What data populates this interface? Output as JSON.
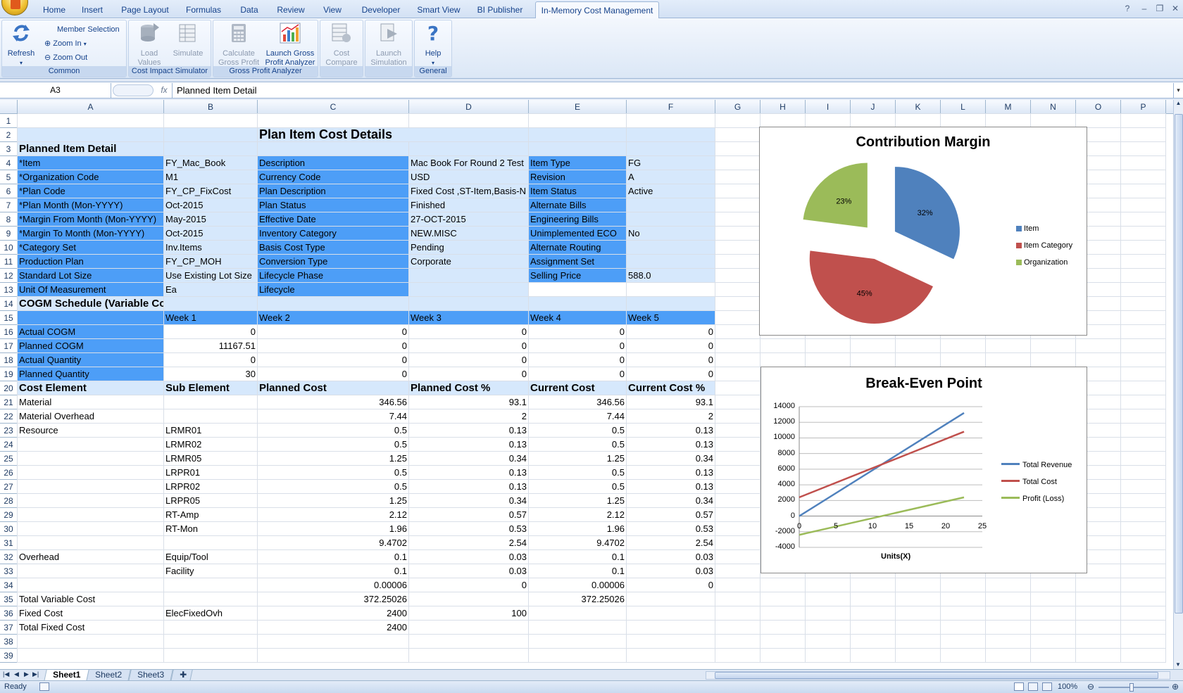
{
  "ribbon": {
    "tabs": [
      "Home",
      "Insert",
      "Page Layout",
      "Formulas",
      "Data",
      "Review",
      "View",
      "Developer",
      "Smart View",
      "BI Publisher",
      "In-Memory Cost Management"
    ],
    "active_tab": "In-Memory Cost Management",
    "groups": {
      "common": {
        "label": "Common",
        "refresh": "Refresh",
        "member_selection": "Member Selection",
        "zoom_in": "Zoom In",
        "zoom_out": "Zoom Out"
      },
      "cost_impact": {
        "label": "Cost Impact Simulator",
        "load_values_1": "Load",
        "load_values_2": "Values",
        "simulate": "Simulate"
      },
      "gross_profit": {
        "label": "Gross Profit Analyzer",
        "calculate_1": "Calculate",
        "calculate_2": "Gross Profit",
        "launch_1": "Launch Gross",
        "launch_2": "Profit Analyzer"
      },
      "cost_compare": {
        "compare_1": "Cost",
        "compare_2": "Compare"
      },
      "simulation": {
        "launch_1": "Launch",
        "launch_2": "Simulation"
      },
      "general": {
        "label": "General",
        "help": "Help"
      }
    }
  },
  "formula_bar": {
    "name_box": "A3",
    "fx": "fx",
    "content": "Planned Item Detail"
  },
  "columns": [
    "A",
    "B",
    "C",
    "D",
    "E",
    "F",
    "G",
    "H",
    "I",
    "J",
    "K",
    "L",
    "M",
    "N",
    "O",
    "P"
  ],
  "rows": [
    "1",
    "2",
    "3",
    "4",
    "5",
    "6",
    "7",
    "8",
    "9",
    "10",
    "11",
    "12",
    "13",
    "14",
    "15",
    "16",
    "17",
    "18",
    "19",
    "20",
    "21",
    "22",
    "23",
    "24",
    "25",
    "26",
    "27",
    "28",
    "29",
    "30",
    "31",
    "32",
    "33",
    "34",
    "35",
    "36",
    "37",
    "38",
    "39"
  ],
  "sheet": {
    "title": "Plan Item Cost Details",
    "section_planned": "Planned Item Detail",
    "details": [
      [
        "*Item",
        "FY_Mac_Book",
        "Description",
        "Mac Book For Round 2 Test",
        "Item Type",
        "FG"
      ],
      [
        "*Organization Code",
        "M1",
        "Currency Code",
        "USD",
        "Revision",
        "A"
      ],
      [
        "*Plan Code",
        "FY_CP_FixCost",
        "Plan Description",
        "Fixed Cost ,ST-Item,Basis-N",
        "Item Status",
        "Active"
      ],
      [
        "*Plan Month (Mon-YYYY)",
        "Oct-2015",
        "Plan Status",
        "Finished",
        "Alternate Bills",
        ""
      ],
      [
        "*Margin From Month (Mon-YYYY)",
        "May-2015",
        "Effective Date",
        "27-OCT-2015",
        "Engineering Bills",
        ""
      ],
      [
        "*Margin To Month (Mon-YYYY)",
        "Oct-2015",
        "Inventory Category",
        "NEW.MISC",
        "Unimplemented ECO",
        "No"
      ],
      [
        "*Category Set",
        "Inv.Items",
        "Basis Cost Type",
        "Pending",
        "Alternate Routing",
        ""
      ],
      [
        "Production Plan",
        "FY_CP_MOH",
        "Conversion Type",
        "Corporate",
        "Assignment Set",
        ""
      ],
      [
        "Standard Lot Size",
        "Use Existing Lot Size",
        "Lifecycle Phase",
        "",
        "Selling Price",
        "588.0"
      ],
      [
        "Unit Of Measurement",
        "Ea",
        "Lifecycle",
        "",
        "",
        ""
      ]
    ],
    "section_cogm": "COGM Schedule (Variable Cost)",
    "weeks": [
      "Week 1",
      "Week 2",
      "Week 3",
      "Week 4",
      "Week 5"
    ],
    "cogm": [
      [
        "Actual COGM",
        "0",
        "0",
        "0",
        "0",
        "0"
      ],
      [
        "Planned COGM",
        "11167.51",
        "0",
        "0",
        "0",
        "0"
      ],
      [
        "Actual Quantity",
        "0",
        "0",
        "0",
        "0",
        "0"
      ],
      [
        "Planned Quantity",
        "30",
        "0",
        "0",
        "0",
        "0"
      ]
    ],
    "cost_headers": [
      "Cost Element",
      "Sub Element",
      "Planned Cost",
      "Planned Cost %",
      "Current Cost",
      "Current Cost %"
    ],
    "costs": [
      [
        "Material",
        "",
        "346.56",
        "93.1",
        "346.56",
        "93.1"
      ],
      [
        "Material Overhead",
        "",
        "7.44",
        "2",
        "7.44",
        "2"
      ],
      [
        "Resource",
        "LRMR01",
        "0.5",
        "0.13",
        "0.5",
        "0.13"
      ],
      [
        "",
        "LRMR02",
        "0.5",
        "0.13",
        "0.5",
        "0.13"
      ],
      [
        "",
        "LRMR05",
        "1.25",
        "0.34",
        "1.25",
        "0.34"
      ],
      [
        "",
        "LRPR01",
        "0.5",
        "0.13",
        "0.5",
        "0.13"
      ],
      [
        "",
        "LRPR02",
        "0.5",
        "0.13",
        "0.5",
        "0.13"
      ],
      [
        "",
        "LRPR05",
        "1.25",
        "0.34",
        "1.25",
        "0.34"
      ],
      [
        "",
        "RT-Amp",
        "2.12",
        "0.57",
        "2.12",
        "0.57"
      ],
      [
        "",
        "RT-Mon",
        "1.96",
        "0.53",
        "1.96",
        "0.53"
      ],
      [
        "",
        "",
        "9.4702",
        "2.54",
        "9.4702",
        "2.54"
      ],
      [
        "Overhead",
        "Equip/Tool",
        "0.1",
        "0.03",
        "0.1",
        "0.03"
      ],
      [
        "",
        "Facility",
        "0.1",
        "0.03",
        "0.1",
        "0.03"
      ],
      [
        "",
        "",
        "0.00006",
        "0",
        "0.00006",
        "0"
      ],
      [
        "Total Variable Cost",
        "",
        "372.25026",
        "",
        "372.25026",
        ""
      ],
      [
        "Fixed Cost",
        "ElecFixedOvh",
        "2400",
        "100",
        "",
        ""
      ],
      [
        "Total Fixed Cost",
        "",
        "2400",
        "",
        "",
        ""
      ]
    ]
  },
  "sheet_tabs": [
    "Sheet1",
    "Sheet2",
    "Sheet3"
  ],
  "active_sheet": "Sheet1",
  "status": {
    "ready": "Ready",
    "zoom": "100%"
  },
  "chart_data": [
    {
      "type": "pie",
      "title": "Contribution Margin",
      "categories": [
        "Item",
        "Item Category",
        "Organization"
      ],
      "values": [
        32,
        45,
        23
      ],
      "labels": [
        "32%",
        "45%",
        "23%"
      ],
      "colors": [
        "#4f81bd",
        "#c0504d",
        "#9bbb59"
      ],
      "exploded": true,
      "legend": "right"
    },
    {
      "type": "line",
      "title": "Break-Even Point",
      "xlabel": "Units(X)",
      "ylabel": "",
      "x": [
        0,
        22.5
      ],
      "xlim": [
        0,
        25
      ],
      "xticks": [
        0,
        5,
        10,
        15,
        20,
        25
      ],
      "ylim": [
        -4000,
        14000
      ],
      "yticks": [
        14000,
        12000,
        10000,
        8000,
        6000,
        4000,
        2000,
        0,
        -2000,
        -4000
      ],
      "series": [
        {
          "name": "Total Revenue",
          "values": [
            0,
            13200
          ],
          "color": "#4f81bd"
        },
        {
          "name": "Total Cost",
          "values": [
            2400,
            10800
          ],
          "color": "#c0504d"
        },
        {
          "name": "Profit (Loss)",
          "values": [
            -2400,
            2400
          ],
          "color": "#9bbb59"
        }
      ],
      "grid": true,
      "legend": "right"
    }
  ]
}
